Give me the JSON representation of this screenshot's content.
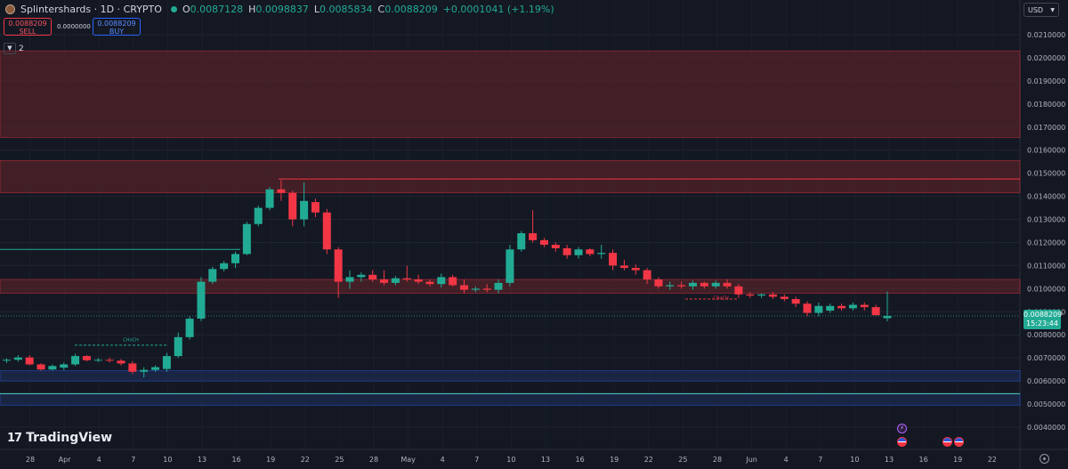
{
  "header": {
    "title": "Splintershards · 1D · CRYPTO",
    "o_label": "O",
    "o": "0.0087128",
    "h_label": "H",
    "h": "0.0098837",
    "l_label": "L",
    "l": "0.0085834",
    "c_label": "C",
    "c": "0.0088209",
    "change": "+0.0001041 (+1.19%)"
  },
  "trade": {
    "sell_price": "0.0088209",
    "sell_label": "SELL",
    "spread": "0.0000000",
    "buy_price": "0.0088209",
    "buy_label": "BUY"
  },
  "indicators": {
    "count": "2"
  },
  "currency": "USD",
  "last_price": {
    "value": "0.0088209",
    "countdown": "15:23:44"
  },
  "brand": "TradingView",
  "colors": {
    "bg": "#141823",
    "up": "#22ab94",
    "down": "#f23645",
    "supply_zone": "#5a2428",
    "demand_zone": "#1c2d55"
  },
  "chart_data": {
    "type": "candlestick",
    "interval": "1D",
    "ylim": [
      0.0041,
      0.021
    ],
    "y_ticks": [
      "0.0210000",
      "0.0200000",
      "0.0190000",
      "0.0180000",
      "0.0170000",
      "0.0160000",
      "0.0150000",
      "0.0140000",
      "0.0130000",
      "0.0120000",
      "0.0110000",
      "0.0100000",
      "0.0090000",
      "0.0080000",
      "0.0070000",
      "0.0060000",
      "0.0050000",
      "0.0040000"
    ],
    "x_labels": [
      "28",
      "Apr",
      "4",
      "7",
      "10",
      "13",
      "16",
      "19",
      "22",
      "25",
      "28",
      "May",
      "4",
      "7",
      "10",
      "13",
      "16",
      "19",
      "22",
      "25",
      "28",
      "Jun",
      "4",
      "7",
      "10",
      "13",
      "16",
      "19",
      "22"
    ],
    "candles": [
      [
        0.00688,
        0.00698,
        0.00678,
        0.00692
      ],
      [
        0.00692,
        0.00712,
        0.00683,
        0.00702
      ],
      [
        0.00702,
        0.00712,
        0.00668,
        0.00672
      ],
      [
        0.00672,
        0.00677,
        0.00645,
        0.0065
      ],
      [
        0.0065,
        0.00672,
        0.00645,
        0.00665
      ],
      [
        0.00658,
        0.0068,
        0.00648,
        0.00672
      ],
      [
        0.00672,
        0.00718,
        0.00665,
        0.00708
      ],
      [
        0.00708,
        0.00712,
        0.00685,
        0.0069
      ],
      [
        0.0069,
        0.007,
        0.00682,
        0.00692
      ],
      [
        0.00692,
        0.00702,
        0.0068,
        0.00688
      ],
      [
        0.00688,
        0.00695,
        0.00668,
        0.00676
      ],
      [
        0.00676,
        0.00686,
        0.0063,
        0.0064
      ],
      [
        0.0064,
        0.0066,
        0.00615,
        0.00648
      ],
      [
        0.00648,
        0.00668,
        0.0064,
        0.0066
      ],
      [
        0.00652,
        0.00722,
        0.0064,
        0.00708
      ],
      [
        0.00708,
        0.0081,
        0.007,
        0.0079
      ],
      [
        0.0079,
        0.0088,
        0.0078,
        0.0087
      ],
      [
        0.0087,
        0.0105,
        0.0086,
        0.0103
      ],
      [
        0.0103,
        0.01095,
        0.0102,
        0.01085
      ],
      [
        0.01085,
        0.0112,
        0.01075,
        0.0111
      ],
      [
        0.0111,
        0.0116,
        0.0109,
        0.0115
      ],
      [
        0.0115,
        0.0129,
        0.01145,
        0.0128
      ],
      [
        0.0128,
        0.0136,
        0.0127,
        0.0135
      ],
      [
        0.0135,
        0.0144,
        0.0134,
        0.0143
      ],
      [
        0.0143,
        0.0147,
        0.0138,
        0.01415
      ],
      [
        0.01415,
        0.01425,
        0.0127,
        0.013
      ],
      [
        0.013,
        0.0146,
        0.0127,
        0.0138
      ],
      [
        0.01375,
        0.0139,
        0.0131,
        0.0133
      ],
      [
        0.0133,
        0.01345,
        0.0115,
        0.0117
      ],
      [
        0.0117,
        0.0118,
        0.0096,
        0.0103
      ],
      [
        0.0103,
        0.0108,
        0.01,
        0.0105
      ],
      [
        0.0105,
        0.0107,
        0.0103,
        0.0106
      ],
      [
        0.0106,
        0.0108,
        0.0103,
        0.0104
      ],
      [
        0.0104,
        0.0108,
        0.01015,
        0.01025
      ],
      [
        0.01025,
        0.01055,
        0.01015,
        0.01045
      ],
      [
        0.01045,
        0.011,
        0.0103,
        0.0104
      ],
      [
        0.0104,
        0.0106,
        0.0102,
        0.0103
      ],
      [
        0.0103,
        0.0104,
        0.0101,
        0.0102
      ],
      [
        0.0102,
        0.01065,
        0.01005,
        0.0105
      ],
      [
        0.0105,
        0.0106,
        0.0101,
        0.01015
      ],
      [
        0.01015,
        0.0104,
        0.0098,
        0.00995
      ],
      [
        0.00995,
        0.0101,
        0.00985,
        0.01
      ],
      [
        0.01,
        0.0102,
        0.00985,
        0.00995
      ],
      [
        0.00995,
        0.0104,
        0.0098,
        0.01025
      ],
      [
        0.01025,
        0.0119,
        0.0101,
        0.0117
      ],
      [
        0.0117,
        0.0125,
        0.0116,
        0.0124
      ],
      [
        0.0124,
        0.0134,
        0.012,
        0.0121
      ],
      [
        0.0121,
        0.0122,
        0.0118,
        0.0119
      ],
      [
        0.0119,
        0.012,
        0.0116,
        0.01175
      ],
      [
        0.01175,
        0.0119,
        0.0113,
        0.01145
      ],
      [
        0.01145,
        0.0118,
        0.0113,
        0.0117
      ],
      [
        0.0117,
        0.01175,
        0.0114,
        0.0115
      ],
      [
        0.0115,
        0.0119,
        0.0113,
        0.01155
      ],
      [
        0.01155,
        0.0117,
        0.0108,
        0.011
      ],
      [
        0.011,
        0.01125,
        0.0108,
        0.0109
      ],
      [
        0.0109,
        0.01105,
        0.0106,
        0.0108
      ],
      [
        0.0108,
        0.0109,
        0.0102,
        0.0104
      ],
      [
        0.0104,
        0.0105,
        0.01,
        0.0101
      ],
      [
        0.0101,
        0.0103,
        0.00995,
        0.01015
      ],
      [
        0.01015,
        0.0103,
        0.01,
        0.0101
      ],
      [
        0.0101,
        0.01035,
        0.00995,
        0.01025
      ],
      [
        0.01025,
        0.0103,
        0.01,
        0.0101
      ],
      [
        0.0101,
        0.01035,
        0.01,
        0.01025
      ],
      [
        0.01025,
        0.0104,
        0.01,
        0.0101
      ],
      [
        0.0101,
        0.0102,
        0.0096,
        0.00975
      ],
      [
        0.00975,
        0.00985,
        0.0096,
        0.0097
      ],
      [
        0.0097,
        0.0098,
        0.0096,
        0.00975
      ],
      [
        0.00975,
        0.00985,
        0.00955,
        0.00965
      ],
      [
        0.00965,
        0.00975,
        0.00945,
        0.00955
      ],
      [
        0.00955,
        0.00965,
        0.0092,
        0.00935
      ],
      [
        0.00935,
        0.00945,
        0.0088,
        0.00895
      ],
      [
        0.00895,
        0.0094,
        0.0088,
        0.00925
      ],
      [
        0.00905,
        0.00935,
        0.00895,
        0.00925
      ],
      [
        0.00925,
        0.00935,
        0.00905,
        0.00915
      ],
      [
        0.00915,
        0.0094,
        0.00905,
        0.0093
      ],
      [
        0.0093,
        0.0094,
        0.00905,
        0.0092
      ],
      [
        0.0092,
        0.0093,
        0.0089,
        0.00885
      ],
      [
        0.00872,
        0.00988,
        0.00858,
        0.00882
      ]
    ],
    "zones": [
      {
        "from": 0.01655,
        "to": 0.0203,
        "kind": "supply"
      },
      {
        "from": 0.01415,
        "to": 0.01555,
        "kind": "supply"
      },
      {
        "from": 0.0098,
        "to": 0.0104,
        "kind": "supply"
      },
      {
        "from": 0.006,
        "to": 0.00645,
        "kind": "demand"
      },
      {
        "from": 0.00495,
        "to": 0.00545,
        "kind": "demand"
      }
    ],
    "levels": [
      {
        "price": 0.01475,
        "style": "solid",
        "color": "#f23645"
      },
      {
        "price": 0.0117,
        "style": "solid",
        "color": "#22ab94"
      },
      {
        "price": 0.00755,
        "style": "dashed",
        "color": "#22ab94"
      },
      {
        "price": 0.00955,
        "style": "dashed",
        "color": "#f23645"
      }
    ],
    "annotations": [
      {
        "text": "CHoCH",
        "price": 0.00765,
        "color": "#22ab94"
      },
      {
        "text": "CHoCH",
        "price": 0.00945,
        "color": "#f23645"
      }
    ],
    "grid": true,
    "legend": "none"
  }
}
